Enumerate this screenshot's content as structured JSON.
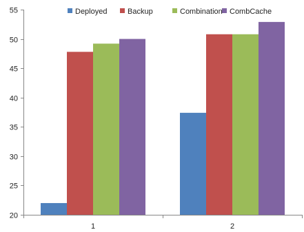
{
  "chart_data": {
    "type": "bar",
    "categories": [
      "1",
      "2"
    ],
    "series": [
      {
        "name": "Deployed",
        "color": "#4F81BD",
        "values": [
          22,
          37.4
        ]
      },
      {
        "name": "Backup",
        "color": "#C0504D",
        "values": [
          47.8,
          50.8
        ]
      },
      {
        "name": "Combination",
        "color": "#9BBB59",
        "values": [
          49.2,
          50.8
        ]
      },
      {
        "name": "CombCache",
        "color": "#8064A2",
        "values": [
          50,
          52.9
        ]
      }
    ],
    "ylim": [
      20,
      55
    ],
    "yticks": [
      "20",
      "25",
      "30",
      "35",
      "40",
      "45",
      "50",
      "55"
    ],
    "grid": false,
    "legend_position": "top-right"
  }
}
